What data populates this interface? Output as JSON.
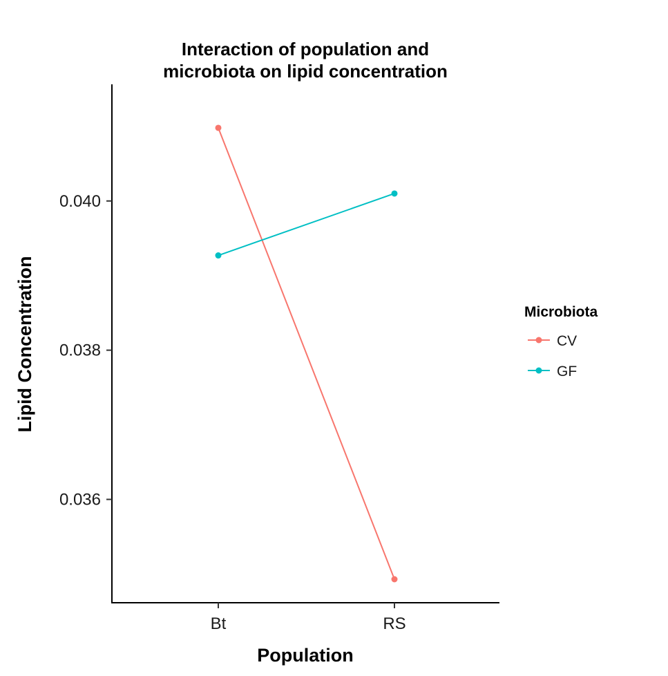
{
  "chart_data": {
    "type": "line",
    "title_lines": [
      "Interaction of population and",
      "microbiota on lipid concentration"
    ],
    "xlabel": "Population",
    "ylabel": "Lipid Concentration",
    "categories": [
      "Bt",
      "RS"
    ],
    "y_ticks": [
      0.036,
      0.038,
      0.04
    ],
    "y_tick_labels": [
      "0.036",
      "0.038",
      "0.040"
    ],
    "ylim": [
      0.03493,
      0.04123
    ],
    "grid": false,
    "legend": {
      "title": "Microbiota",
      "placement": "right"
    },
    "series": [
      {
        "name": "CV",
        "color": "#F8766D",
        "values": [
          0.04098,
          0.03493
        ]
      },
      {
        "name": "GF",
        "color": "#00BFC4",
        "values": [
          0.03927,
          0.0401
        ]
      }
    ]
  }
}
